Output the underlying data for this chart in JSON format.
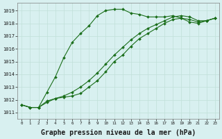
{
  "background_color": "#d8f0f0",
  "grid_color": "#c0e0d8",
  "line_color": "#1a6e1a",
  "marker": "D",
  "marker_size": 2,
  "line_width": 0.8,
  "xlabel": "Graphe pression niveau de la mer (hPa)",
  "xlabel_fontsize": 7,
  "yticks": [
    1011,
    1012,
    1013,
    1014,
    1015,
    1016,
    1017,
    1018,
    1019
  ],
  "xticks": [
    0,
    1,
    2,
    3,
    4,
    5,
    6,
    7,
    8,
    9,
    10,
    11,
    12,
    13,
    14,
    15,
    16,
    17,
    18,
    19,
    20,
    21,
    22,
    23
  ],
  "ylim": [
    1010.5,
    1019.6
  ],
  "xlim": [
    -0.5,
    23.5
  ],
  "series1_x": [
    0,
    1,
    2,
    3,
    4,
    5,
    6,
    7,
    8,
    9,
    10,
    11,
    12,
    13,
    14,
    15,
    16,
    17,
    18,
    19,
    20,
    21,
    22,
    23
  ],
  "series1_y": [
    1011.6,
    1011.4,
    1011.4,
    1012.6,
    1013.8,
    1015.3,
    1016.5,
    1017.2,
    1017.8,
    1018.6,
    1019.0,
    1019.1,
    1019.1,
    1018.8,
    1018.7,
    1018.5,
    1018.5,
    1018.5,
    1018.6,
    1018.4,
    1018.1,
    1018.0,
    1018.2,
    1018.4
  ],
  "series2_x": [
    0,
    1,
    2,
    3,
    4,
    5,
    6,
    7,
    8,
    9,
    10,
    11,
    12,
    13,
    14,
    15,
    16,
    17,
    18,
    19,
    20,
    21,
    22,
    23
  ],
  "series2_y": [
    1011.6,
    1011.4,
    1011.4,
    1011.8,
    1012.1,
    1012.2,
    1012.3,
    1012.5,
    1013.0,
    1013.5,
    1014.2,
    1015.0,
    1015.5,
    1016.2,
    1016.8,
    1017.2,
    1017.6,
    1018.0,
    1018.3,
    1018.4,
    1018.3,
    1018.1,
    1018.2,
    1018.4
  ],
  "series3_x": [
    0,
    1,
    2,
    3,
    4,
    5,
    6,
    7,
    8,
    9,
    10,
    11,
    12,
    13,
    14,
    15,
    16,
    17,
    18,
    19,
    20,
    21,
    22,
    23
  ],
  "series3_y": [
    1011.6,
    1011.4,
    1011.4,
    1011.9,
    1012.1,
    1012.3,
    1012.6,
    1013.0,
    1013.5,
    1014.1,
    1014.8,
    1015.5,
    1016.1,
    1016.7,
    1017.2,
    1017.6,
    1017.9,
    1018.2,
    1018.5,
    1018.6,
    1018.5,
    1018.2,
    1018.2,
    1018.4
  ]
}
